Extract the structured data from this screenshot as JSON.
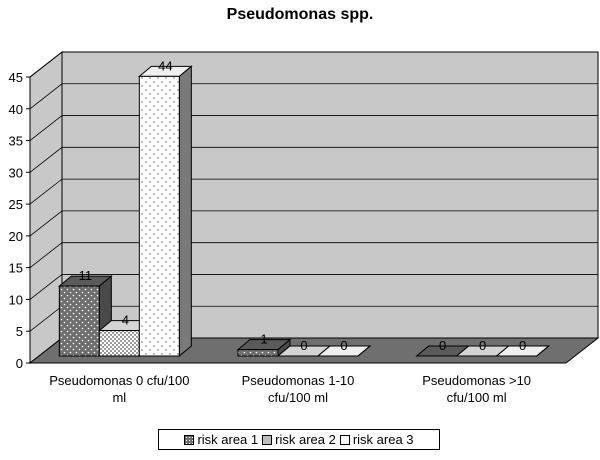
{
  "chart_data": {
    "type": "bar",
    "title": "Pseudomonas spp.",
    "categories": [
      [
        "Pseudomonas 0 cfu/100",
        "ml"
      ],
      [
        "Pseudomonas 1-10",
        "cfu/100 ml"
      ],
      [
        "Pseudomonas >10",
        "cfu/100 ml"
      ]
    ],
    "series": [
      {
        "name": "risk area 1",
        "values": [
          11,
          1,
          0
        ],
        "color": "#6e6e6e"
      },
      {
        "name": "risk area 2",
        "values": [
          4,
          0,
          0
        ],
        "color": "#bcbcbc"
      },
      {
        "name": "risk area 3",
        "values": [
          44,
          0,
          0
        ],
        "color": "#ffffff"
      }
    ],
    "ylim": [
      0,
      45
    ],
    "yticks": [
      0,
      5,
      10,
      15,
      20,
      25,
      30,
      35,
      40,
      45
    ],
    "grid": true,
    "legend": "bottom",
    "colors": {
      "wall": "#c8c8c8",
      "floor": "#6f6f6f",
      "grid": "#000000"
    }
  }
}
